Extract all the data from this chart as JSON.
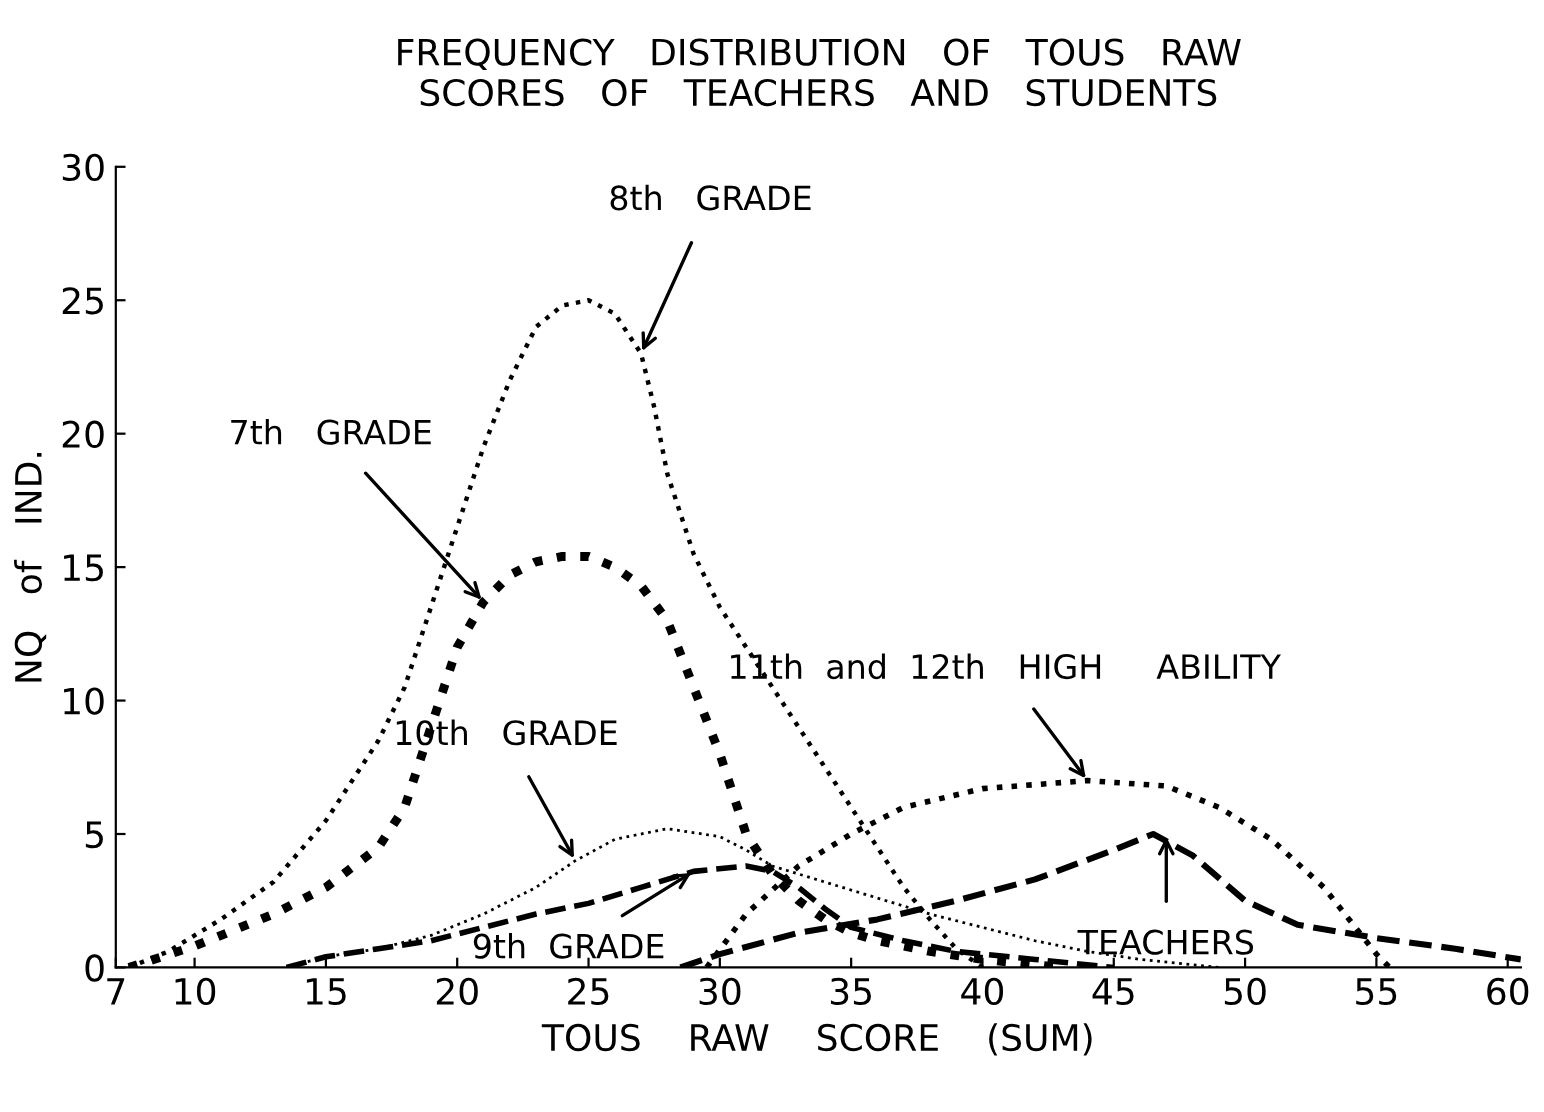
{
  "chart_data": {
    "type": "line",
    "title": "FREQUENCY   DISTRIBUTION   OF   TOUS   RAW\nSCORES   OF   TEACHERS   AND   STUDENTS",
    "xlabel": "TOUS    RAW    SCORE    (SUM)",
    "ylabel": "NQ   of   IND.",
    "xlim": [
      7,
      60.5
    ],
    "ylim": [
      0,
      30
    ],
    "xticks": [
      7,
      10,
      15,
      20,
      25,
      30,
      35,
      40,
      45,
      50,
      55,
      60
    ],
    "yticks": [
      0,
      5,
      10,
      15,
      20,
      25,
      30
    ],
    "grid": false,
    "legend": false,
    "series": [
      {
        "color": "#000000",
        "line_style": "dotted",
        "x": [
          7.5,
          9,
          11,
          13,
          15,
          17,
          18,
          19,
          20,
          21,
          22,
          23,
          24,
          25,
          26,
          27,
          27.5,
          28,
          29,
          30,
          31,
          32,
          33,
          34,
          35,
          36,
          37,
          38,
          39,
          40
        ],
        "values": [
          0,
          0.6,
          1.8,
          3.2,
          5.5,
          8.5,
          10.5,
          13.5,
          16.5,
          19.5,
          22,
          24,
          24.8,
          25,
          24.5,
          23,
          21,
          18.5,
          15.5,
          13.5,
          12,
          10.5,
          9,
          7.5,
          6,
          4.5,
          3,
          1.8,
          0.7,
          0
        ]
      },
      {
        "color": "#000000",
        "line_style": "dotted",
        "x": [
          7.5,
          10,
          13,
          15,
          17,
          18,
          19,
          20,
          21,
          22,
          23,
          24,
          25,
          26,
          27,
          28,
          29,
          30,
          31,
          32,
          33,
          34,
          35,
          36,
          38,
          40,
          43
        ],
        "values": [
          0,
          0.8,
          2,
          3,
          4.5,
          6,
          9,
          12,
          13.7,
          14.7,
          15.2,
          15.4,
          15.4,
          15,
          14.3,
          13,
          10.5,
          8,
          5,
          3.5,
          2.5,
          1.8,
          1.3,
          1,
          0.6,
          0.3,
          0
        ]
      },
      {
        "color": "#000000",
        "line_style": "dotted",
        "x": [
          13.5,
          15,
          17,
          19,
          21,
          23,
          24.5,
          26,
          28,
          30,
          31,
          32,
          34,
          36,
          38,
          40,
          42,
          44,
          46,
          49
        ],
        "values": [
          0,
          0.4,
          0.7,
          1.2,
          2,
          3,
          4,
          4.8,
          5.2,
          4.9,
          4.4,
          3.8,
          3.2,
          2.6,
          2,
          1.5,
          1,
          0.6,
          0.3,
          0
        ]
      },
      {
        "color": "#000000",
        "line_style": "dashed",
        "x": [
          13.5,
          15,
          17,
          19,
          21,
          23,
          25,
          27,
          29,
          31,
          32,
          33,
          34,
          35,
          37,
          39,
          42,
          45
        ],
        "values": [
          0,
          0.4,
          0.7,
          1,
          1.5,
          2,
          2.4,
          3,
          3.6,
          3.8,
          3.6,
          3,
          2.2,
          1.5,
          1,
          0.6,
          0.3,
          0
        ]
      },
      {
        "color": "#000000",
        "line_style": "dotted",
        "x": [
          29.5,
          31,
          33,
          35,
          37,
          40,
          44,
          47,
          49,
          51,
          53,
          55,
          55.5
        ],
        "values": [
          0,
          2,
          3.8,
          5,
          6,
          6.7,
          7,
          6.8,
          6,
          4.8,
          3,
          0.5,
          0
        ]
      },
      {
        "color": "#000000",
        "line_style": "dashed",
        "x": [
          28.5,
          30,
          33,
          36,
          39,
          42,
          45,
          46.5,
          48,
          50,
          52,
          55,
          58,
          60.5
        ],
        "values": [
          0,
          0.5,
          1.3,
          1.8,
          2.5,
          3.3,
          4.4,
          5,
          4.2,
          2.5,
          1.6,
          1.1,
          0.7,
          0.3
        ]
      }
    ],
    "annotations": [
      {
        "text": "8th   GRADE",
        "x": 27,
        "y": 23
      },
      {
        "text": "7th   GRADE",
        "x": 21,
        "y": 13.7
      },
      {
        "text": "10th   GRADE",
        "x": 24.5,
        "y": 4
      },
      {
        "text": "9th  GRADE",
        "x": 29,
        "y": 3.6
      },
      {
        "text": "11th  and  12th   HIGH     ABILITY",
        "x": 44,
        "y": 7
      },
      {
        "text": "TEACHERS",
        "x": 47,
        "y": 5
      }
    ]
  }
}
